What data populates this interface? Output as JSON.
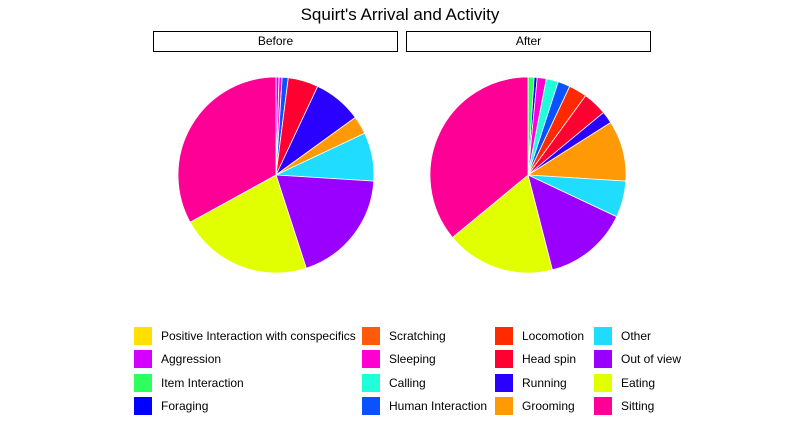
{
  "chart_data": {
    "type": "pie",
    "title": "Squirt's Arrival and Activity",
    "panels": [
      {
        "label": "Before",
        "slices": [
          {
            "category": "Positive Interaction with conspecifics",
            "value": 0.0
          },
          {
            "category": "Aggression",
            "value": 0.5
          },
          {
            "category": "Item Interaction",
            "value": 0.0
          },
          {
            "category": "Foraging",
            "value": 0.0
          },
          {
            "category": "Scratching",
            "value": 0.0
          },
          {
            "category": "Sleeping",
            "value": 0.5
          },
          {
            "category": "Calling",
            "value": 0.0
          },
          {
            "category": "Human Interaction",
            "value": 1.0
          },
          {
            "category": "Locomotion",
            "value": 0.0
          },
          {
            "category": "Head spin",
            "value": 5.0
          },
          {
            "category": "Running",
            "value": 8.0
          },
          {
            "category": "Grooming",
            "value": 3.0
          },
          {
            "category": "Other",
            "value": 8.0
          },
          {
            "category": "Out of view",
            "value": 19.0
          },
          {
            "category": "Eating",
            "value": 22.0
          },
          {
            "category": "Sitting",
            "value": 33.0
          }
        ]
      },
      {
        "label": "After",
        "slices": [
          {
            "category": "Positive Interaction with conspecifics",
            "value": 0.0
          },
          {
            "category": "Aggression",
            "value": 0.0
          },
          {
            "category": "Item Interaction",
            "value": 1.0
          },
          {
            "category": "Foraging",
            "value": 0.5
          },
          {
            "category": "Scratching",
            "value": 0.0
          },
          {
            "category": "Sleeping",
            "value": 1.5
          },
          {
            "category": "Calling",
            "value": 2.0
          },
          {
            "category": "Human Interaction",
            "value": 2.0
          },
          {
            "category": "Locomotion",
            "value": 3.0
          },
          {
            "category": "Head spin",
            "value": 4.0
          },
          {
            "category": "Running",
            "value": 2.0
          },
          {
            "category": "Grooming",
            "value": 10.0
          },
          {
            "category": "Other",
            "value": 6.0
          },
          {
            "category": "Out of view",
            "value": 14.0
          },
          {
            "category": "Eating",
            "value": 18.0
          },
          {
            "category": "Sitting",
            "value": 36.0
          }
        ]
      }
    ],
    "legend": {
      "position": "bottom",
      "entries": [
        {
          "label": "Positive Interaction with conspecifics",
          "color": "#FFE000"
        },
        {
          "label": "Aggression",
          "color": "#D400FF"
        },
        {
          "label": "Item Interaction",
          "color": "#2EFF5E"
        },
        {
          "label": "Foraging",
          "color": "#0000FF"
        },
        {
          "label": "Scratching",
          "color": "#FF5A0B"
        },
        {
          "label": "Sleeping",
          "color": "#FF00D0"
        },
        {
          "label": "Calling",
          "color": "#20FFD8"
        },
        {
          "label": "Human Interaction",
          "color": "#0A52FF"
        },
        {
          "label": "Locomotion",
          "color": "#FF2A00"
        },
        {
          "label": "Head spin",
          "color": "#FF0030"
        },
        {
          "label": "Running",
          "color": "#2A00FF"
        },
        {
          "label": "Grooming",
          "color": "#FF9A06"
        },
        {
          "label": "Other",
          "color": "#20DCFF"
        },
        {
          "label": "Out of view",
          "color": "#9A00FF"
        },
        {
          "label": "Eating",
          "color": "#E2FF00"
        },
        {
          "label": "Sitting",
          "color": "#FF0096"
        }
      ]
    },
    "grid": false
  }
}
